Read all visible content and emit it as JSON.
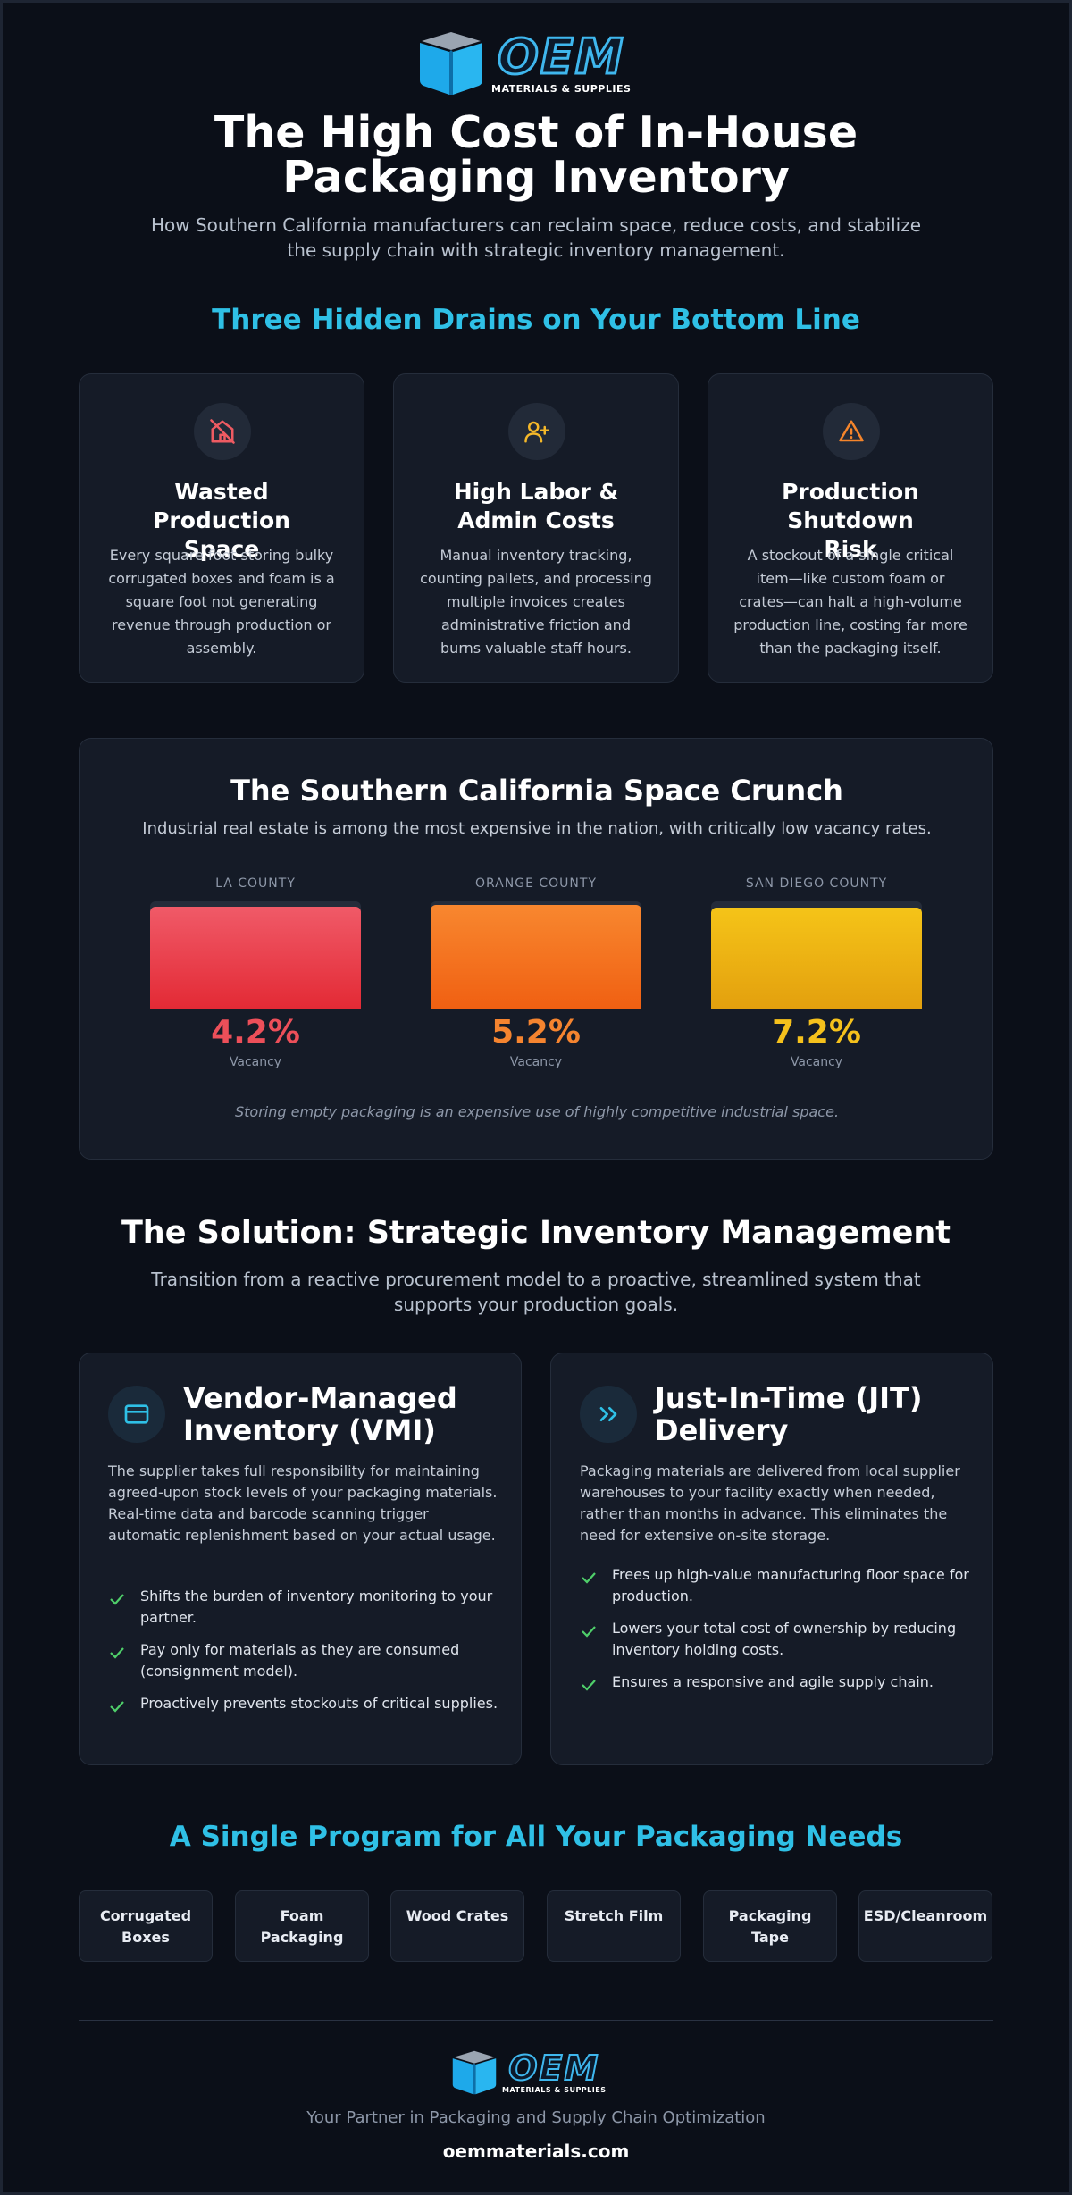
{
  "header": {
    "logo_text": "OEM",
    "logo_subtext": "MATERIALS & SUPPLIES",
    "title": "The High Cost of In-House Packaging Inventory",
    "subtitle": "How Southern California manufacturers can reclaim space, reduce costs, and stabilize the supply chain with strategic inventory management."
  },
  "drains": {
    "heading": "Three Hidden Drains on Your Bottom Line",
    "cards": [
      {
        "icon": "house-off-icon",
        "title": "Wasted Production Space",
        "text": "Every square foot storing bulky corrugated boxes and foam is a square foot not generating revenue through production or assembly.",
        "color": "#ef5b62"
      },
      {
        "icon": "user-plus-icon",
        "title": "High Labor & Admin Costs",
        "text": "Manual inventory tracking, counting pallets, and processing multiple invoices creates administrative friction and burns valuable staff hours.",
        "color": "#f5b829"
      },
      {
        "icon": "warning-icon",
        "title": "Production Shutdown Risk",
        "text": "A stockout of a single critical item—like custom foam or crates—can halt a high-volume production line, costing far more than the packaging itself.",
        "color": "#f5852b"
      }
    ]
  },
  "crunch": {
    "heading": "The Southern California Space Crunch",
    "subtitle": "Industrial real estate is among the most expensive in the nation, with critically low vacancy rates.",
    "counties": [
      {
        "label": "LA COUNTY",
        "value": "4.2%",
        "fill": 0.95,
        "sub": "Vacancy",
        "color": "#ec4f59",
        "grad": [
          "#f05a68",
          "#e32a35"
        ]
      },
      {
        "label": "ORANGE COUNTY",
        "value": "5.2%",
        "fill": 0.97,
        "sub": "Vacancy",
        "color": "#f5842f",
        "grad": [
          "#f8872f",
          "#f06012"
        ]
      },
      {
        "label": "SAN DIEGO COUNTY",
        "value": "7.2%",
        "fill": 0.94,
        "sub": "Vacancy",
        "color": "#f5c11c",
        "grad": [
          "#f5c418",
          "#e3a00e"
        ]
      }
    ],
    "note": "Storing empty packaging is an expensive use of highly competitive industrial space."
  },
  "solution": {
    "heading": "The Solution: Strategic Inventory Management",
    "subtitle": "Transition from a reactive procurement model to a proactive, streamlined system that supports your production goals.",
    "vmi": {
      "title": "Vendor-Managed Inventory (VMI)",
      "text": "The supplier takes full responsibility for maintaining agreed-upon stock levels of your packaging materials. Real-time data and barcode scanning trigger automatic replenishment based on your actual usage.",
      "bullets": [
        "Shifts the burden of inventory monitoring to your partner.",
        "Pay only for materials as they are consumed (consignment model).",
        "Proactively prevents stockouts of critical supplies."
      ]
    },
    "jit": {
      "title": "Just-In-Time (JIT) Delivery",
      "text": "Packaging materials are delivered from local supplier warehouses to your facility exactly when needed, rather than months in advance. This eliminates the need for extensive on-site storage.",
      "bullets": [
        "Frees up high-value manufacturing floor space for production.",
        "Lowers your total cost of ownership by reducing inventory holding costs.",
        "Ensures a responsive and agile supply chain."
      ]
    }
  },
  "program": {
    "heading": "A Single Program for All Your Packaging Needs",
    "items": [
      "Corrugated Boxes",
      "Foam Packaging",
      "Wood Crates",
      "Stretch Film",
      "Packaging Tape",
      "ESD/Cleanroom"
    ]
  },
  "footer": {
    "tagline": "Your Partner in Packaging and Supply Chain Optimization",
    "url": "oemmaterials.com"
  },
  "colors": {
    "accent": "#2fc0e6",
    "check": "#4fcf6a",
    "background": "#0b0f18",
    "card": "#151b27"
  }
}
